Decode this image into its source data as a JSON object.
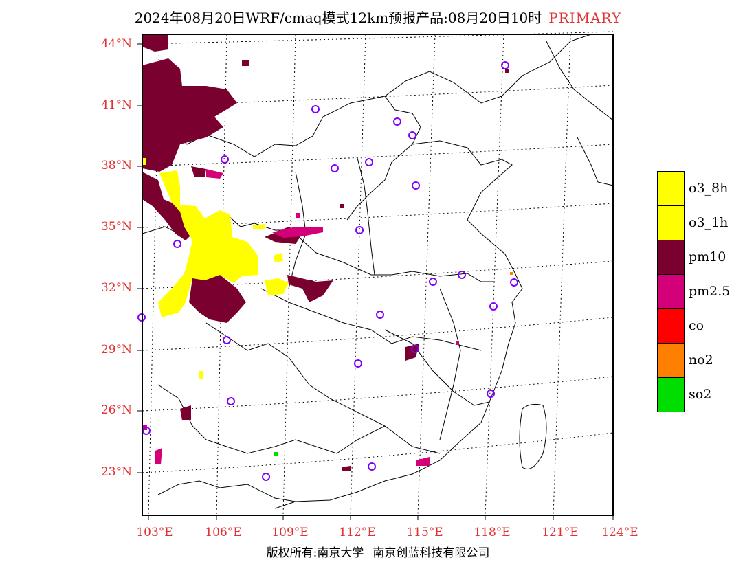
{
  "title": {
    "main": "2024年08月20日WRF/cmaq模式12km预报产品:08月20日10时",
    "tag": "PRIMARY"
  },
  "axes": {
    "lat_labels": [
      "44°N",
      "41°N",
      "38°N",
      "35°N",
      "32°N",
      "29°N",
      "26°N",
      "23°N"
    ],
    "lon_labels": [
      "103°E",
      "106°E",
      "109°E",
      "112°E",
      "115°E",
      "118°E",
      "121°E",
      "124°E"
    ]
  },
  "legend": [
    {
      "label": "o3_8h",
      "color": "#ffff00"
    },
    {
      "label": "o3_1h",
      "color": "#ffff00"
    },
    {
      "label": "pm10",
      "color": "#7a0030"
    },
    {
      "label": "pm2.5",
      "color": "#d4007a"
    },
    {
      "label": "co",
      "color": "#ff0000"
    },
    {
      "label": "no2",
      "color": "#ff8000"
    },
    {
      "label": "so2",
      "color": "#00dd00"
    }
  ],
  "colors": {
    "axis_label": "#e03030",
    "station_marker": "#8000ff"
  },
  "footer": {
    "left": "版权所有:南京大学",
    "right": "南京创蓝科技有限公司"
  }
}
